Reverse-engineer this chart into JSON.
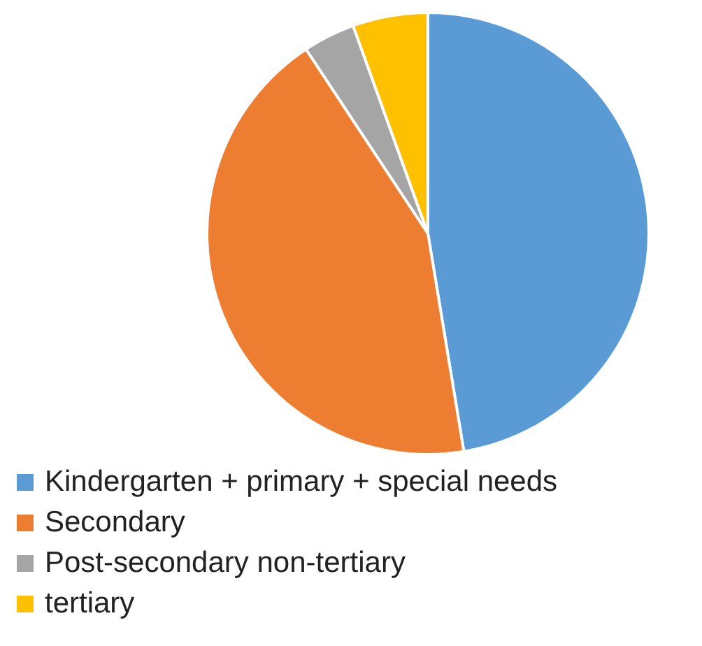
{
  "chart_data": {
    "type": "pie",
    "categories": [
      "Kindergarten + primary + special needs",
      "Secondary",
      "Post-secondary non-tertiary",
      "tertiary"
    ],
    "values": [
      47.4,
      43.3,
      3.8,
      5.5
    ],
    "colors": [
      "#5b9bd5",
      "#ed7d31",
      "#a5a5a5",
      "#ffc000"
    ],
    "legend": "bottom"
  }
}
